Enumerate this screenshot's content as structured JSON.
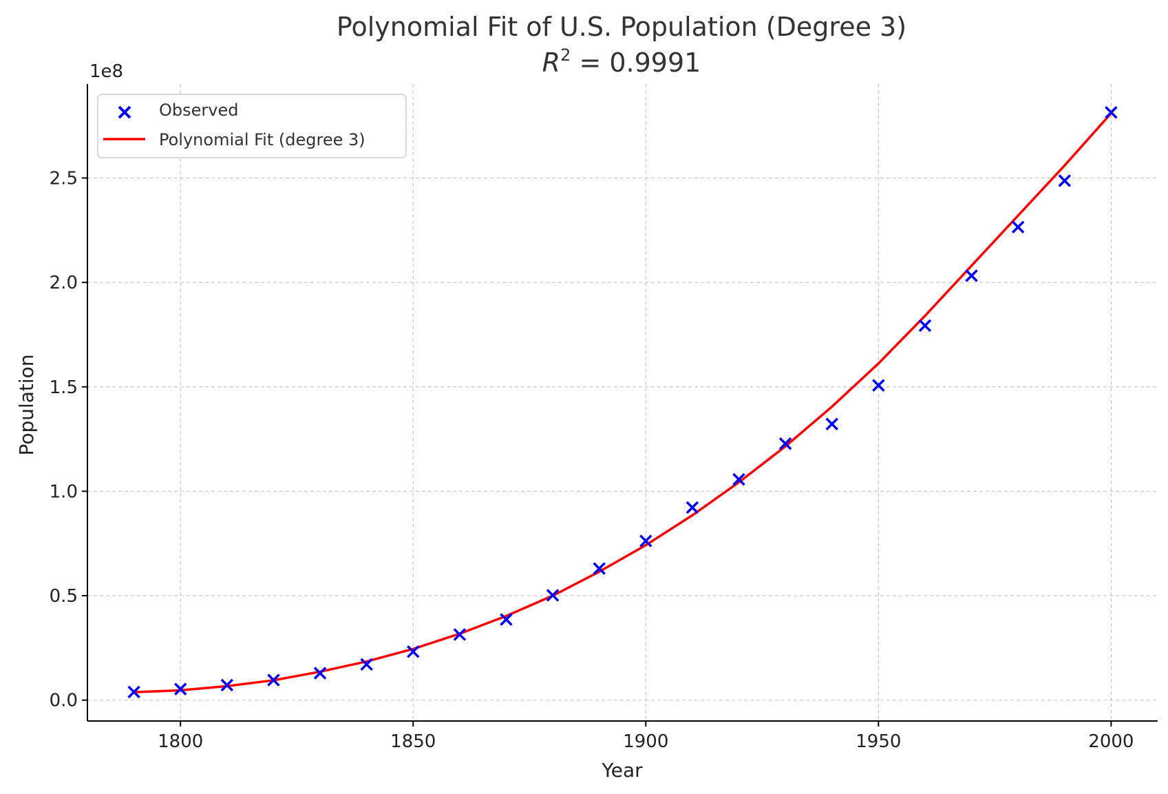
{
  "chart_data": {
    "type": "scatter",
    "title": "Polynomial Fit of U.S. Population (Degree 3)",
    "subtitle_lhs": "R",
    "subtitle_sup": "2",
    "subtitle_rhs": " = 0.9991",
    "xlabel": "Year",
    "ylabel": "Population",
    "offset_label": "1e8",
    "xlim": [
      1780,
      2010
    ],
    "ylim": [
      -0.1,
      2.95
    ],
    "xticks": [
      1800,
      1850,
      1900,
      1950,
      2000
    ],
    "xtick_labels": [
      "1800",
      "1850",
      "1900",
      "1950",
      "2000"
    ],
    "yticks": [
      0.0,
      0.5,
      1.0,
      1.5,
      2.0,
      2.5
    ],
    "ytick_labels": [
      "0.0",
      "0.5",
      "1.0",
      "1.5",
      "2.0",
      "2.5"
    ],
    "grid": true,
    "legend_position": "top-left",
    "series": [
      {
        "name": "Observed",
        "kind": "scatter",
        "marker": "x",
        "color": "#0000ff",
        "x": [
          1790,
          1800,
          1810,
          1820,
          1830,
          1840,
          1850,
          1860,
          1870,
          1880,
          1890,
          1900,
          1910,
          1920,
          1930,
          1940,
          1950,
          1960,
          1970,
          1980,
          1990,
          2000
        ],
        "y": [
          0.039,
          0.053,
          0.072,
          0.096,
          0.129,
          0.171,
          0.232,
          0.314,
          0.386,
          0.502,
          0.63,
          0.762,
          0.922,
          1.057,
          1.228,
          1.322,
          1.507,
          1.793,
          2.032,
          2.265,
          2.487,
          2.814
        ]
      },
      {
        "name": "Polynomial Fit (degree 3)",
        "kind": "line",
        "color": "#ff0000",
        "x": [
          1790,
          1800,
          1810,
          1820,
          1830,
          1840,
          1850,
          1860,
          1870,
          1880,
          1890,
          1900,
          1910,
          1920,
          1930,
          1940,
          1950,
          1960,
          1970,
          1980,
          1990,
          2000
        ],
        "y": [
          0.038,
          0.047,
          0.067,
          0.095,
          0.136,
          0.185,
          0.245,
          0.318,
          0.403,
          0.5,
          0.615,
          0.742,
          0.885,
          1.043,
          1.215,
          1.405,
          1.612,
          1.84,
          2.08,
          2.32,
          2.56,
          2.81
        ]
      }
    ]
  }
}
